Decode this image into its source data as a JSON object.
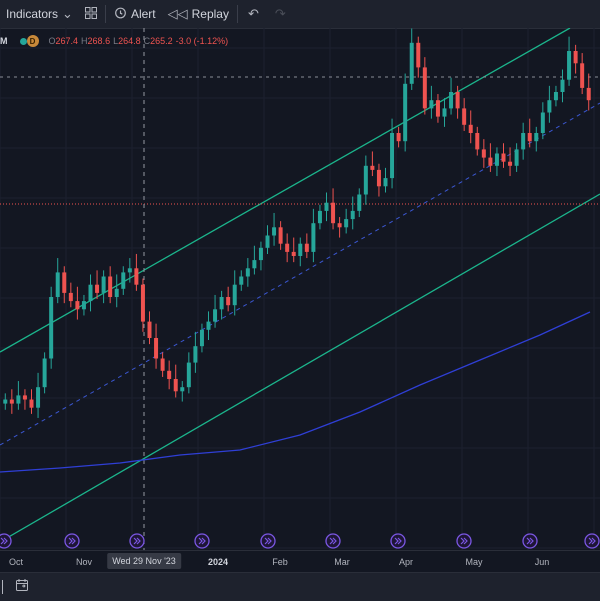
{
  "toolbar": {
    "indicators_label": "Indicators",
    "alert_label": "Alert",
    "replay_label": "Replay"
  },
  "legend": {
    "interval_suffix": "M",
    "badge_letter": "D",
    "open_key": "O",
    "open_value": "267.4",
    "high_key": "H",
    "high_value": "268.6",
    "low_key": "L",
    "low_value": "264.8",
    "close_key": "C",
    "close_value": "265.2",
    "change": "-3.0 (-1.12%)"
  },
  "xaxis": {
    "labels": [
      "Oct",
      "Nov",
      "2024",
      "Feb",
      "Mar",
      "Apr",
      "May",
      "Jun"
    ],
    "crosshair_label": "Wed 29 Nov '23"
  },
  "colors": {
    "background": "#131722",
    "up": "#26a69a",
    "down": "#ef5350",
    "channel": "#1bb58c",
    "midline": "#3b57d1",
    "moving_average": "#2f3fd6",
    "price_line": "#ef5350",
    "event_icon": "#7b57e4"
  },
  "chart_data": {
    "type": "candlestick",
    "title": "",
    "xlabel": "",
    "ylabel": "",
    "x_ticks": [
      "Oct",
      "Nov",
      "2024",
      "Feb",
      "Mar",
      "Apr",
      "May",
      "Jun"
    ],
    "y_range_approx": [
      170,
      270
    ],
    "last_close": 265.2,
    "trend_channel": {
      "upper": "rising",
      "lower": "rising",
      "middle": "dashed"
    },
    "moving_average": {
      "direction": "rising"
    },
    "series_approx_closes": [
      205,
      204,
      206,
      205,
      203,
      208,
      215,
      230,
      236,
      231,
      229,
      227,
      229,
      233,
      231,
      235,
      230,
      232,
      236,
      237,
      233,
      224,
      220,
      215,
      212,
      210,
      207,
      208,
      214,
      218,
      222,
      224,
      227,
      230,
      228,
      233,
      235,
      237,
      239,
      242,
      245,
      247,
      243,
      241,
      240,
      243,
      241,
      248,
      251,
      253,
      248,
      247,
      249,
      251,
      255,
      262,
      261,
      257,
      259,
      270,
      268,
      282,
      292,
      286,
      276,
      278,
      274,
      276,
      280,
      276,
      272,
      270,
      266,
      264,
      262,
      265,
      263,
      262,
      266,
      270,
      268,
      270,
      275,
      278,
      280,
      283,
      290,
      287,
      281,
      278
    ]
  }
}
